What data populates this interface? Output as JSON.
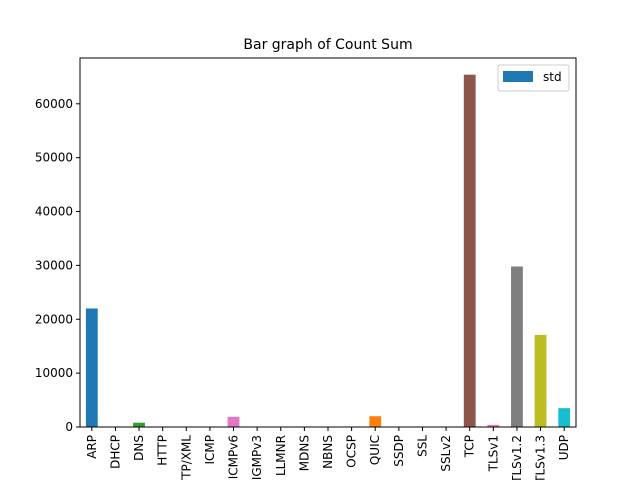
{
  "chart_data": {
    "type": "bar",
    "title": "Bar graph of Count Sum",
    "xlabel": "",
    "ylabel": "",
    "ylim": [
      0,
      68500
    ],
    "yticks": [
      0,
      10000,
      20000,
      30000,
      40000,
      50000,
      60000
    ],
    "categories": [
      "ARP",
      "DHCP",
      "DNS",
      "HTTP",
      "HTTP/XML",
      "ICMP",
      "ICMPv6",
      "IGMPv3",
      "LLMNR",
      "MDNS",
      "NBNS",
      "OCSP",
      "QUIC",
      "SSDP",
      "SSL",
      "SSLv2",
      "TCP",
      "TLSv1",
      "TLSv1.2",
      "TLSv1.3",
      "UDP"
    ],
    "series": [
      {
        "name": "std",
        "values": [
          22000,
          50,
          800,
          50,
          30,
          20,
          1900,
          20,
          20,
          50,
          20,
          20,
          2000,
          30,
          20,
          20,
          65400,
          400,
          29800,
          17100,
          3500
        ]
      }
    ],
    "bar_colors": [
      "#1f77b4",
      "#ff7f0e",
      "#2ca02c",
      "#d62728",
      "#9467bd",
      "#8c564b",
      "#e377c2",
      "#7f7f7f",
      "#bcbd22",
      "#17becf",
      "#1f77b4",
      "#ff7f0e",
      "#ff7f0e",
      "#2ca02c",
      "#d62728",
      "#9467bd",
      "#8c564b",
      "#e377c2",
      "#7f7f7f",
      "#bcbd22",
      "#17becf"
    ],
    "legend": {
      "placement": "top-right",
      "entries": [
        {
          "label": "std",
          "color": "#1f77b4"
        }
      ]
    },
    "grid": false
  }
}
